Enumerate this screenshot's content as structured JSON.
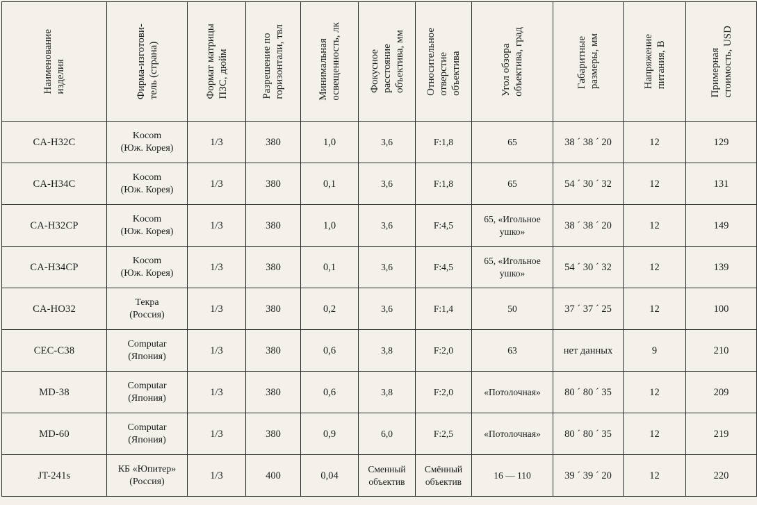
{
  "table": {
    "headers": [
      "Наименование\nизделия",
      "Фирма-изготови-\nтель (страна)",
      "Формат матрицы\nПЗС, дюйм",
      "Разрешение по\nгоризонтали, твл",
      "Минимальная\nосвещенность, лк",
      "Фокусное\nрасстояние\nобъектива, мм",
      "Относительное\nотверстие\nобъектива",
      "Угол обзора\nобъектива, град",
      "Габаритные\nразмеры, мм",
      "Напряжение\nпитания, В",
      "Примерная\nстоимость, USD"
    ],
    "rows": [
      [
        "CA-H32C",
        "Kocom\n(Юж. Корея)",
        "1/3",
        "380",
        "1,0",
        "3,6",
        "F:1,8",
        "65",
        "38 ´ 38 ´ 20",
        "12",
        "129"
      ],
      [
        "CA-H34C",
        "Kocom\n(Юж. Корея)",
        "1/3",
        "380",
        "0,1",
        "3,6",
        "F:1,8",
        "65",
        "54 ´ 30 ´ 32",
        "12",
        "131"
      ],
      [
        "CA-H32CP",
        "Kocom\n(Юж. Корея)",
        "1/3",
        "380",
        "1,0",
        "3,6",
        "F:4,5",
        "65, «Игольное\nушко»",
        "38 ´ 38 ´ 20",
        "12",
        "149"
      ],
      [
        "CA-H34CP",
        "Kocom\n(Юж. Корея)",
        "1/3",
        "380",
        "0,1",
        "3,6",
        "F:4,5",
        "65, «Игольное\nушко»",
        "54 ´ 30 ´ 32",
        "12",
        "139"
      ],
      [
        "CA-HO32",
        "Текра\n(Россия)",
        "1/3",
        "380",
        "0,2",
        "3,6",
        "F:1,4",
        "50",
        "37 ´ 37 ´ 25",
        "12",
        "100"
      ],
      [
        "CEC-C38",
        "Computar\n(Япония)",
        "1/3",
        "380",
        "0,6",
        "3,8",
        "F:2,0",
        "63",
        "нет данных",
        "9",
        "210"
      ],
      [
        "MD-38",
        "Computar\n(Япония)",
        "1/3",
        "380",
        "0,6",
        "3,8",
        "F:2,0",
        "«Потолочная»",
        "80 ´ 80 ´ 35",
        "12",
        "209"
      ],
      [
        "MD-60",
        "Computar\n(Япония)",
        "1/3",
        "380",
        "0,9",
        "6,0",
        "F:2,5",
        "«Потолочная»",
        "80 ´ 80 ´ 35",
        "12",
        "219"
      ],
      [
        "JT-241s",
        "КБ «Юпитер»\n(Россия)",
        "1/3",
        "400",
        "0,04",
        "Сменный\nобъектив",
        "Смённый\nобъектив",
        "16 — 110",
        "39 ´ 39 ´ 20",
        "12",
        "220"
      ]
    ]
  }
}
